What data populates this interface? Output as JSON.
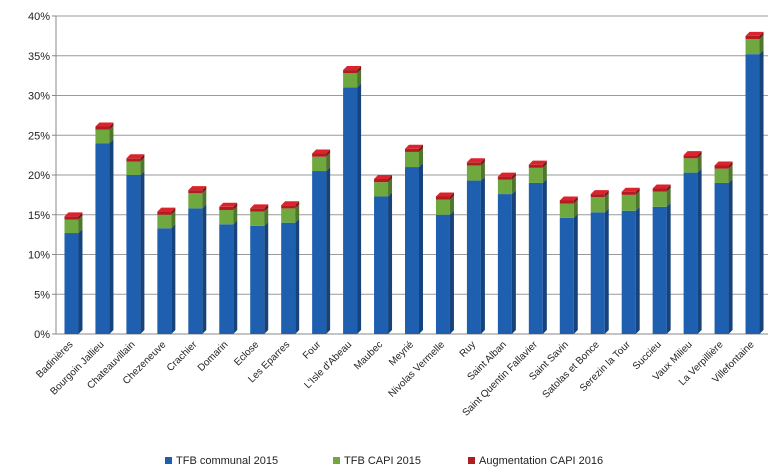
{
  "chart_data": {
    "type": "bar",
    "stacked": true,
    "title": "",
    "xlabel": "",
    "ylabel": "",
    "ylim": [
      0,
      40
    ],
    "yticks": [
      "0%",
      "5%",
      "10%",
      "15%",
      "20%",
      "25%",
      "30%",
      "35%",
      "40%"
    ],
    "grid": true,
    "legend_position": "bottom",
    "categories": [
      "Badinières",
      "Bourgoin Jallieu",
      "Chateauvillain",
      "Chezeneuve",
      "Crachier",
      "Domarin",
      "Eclose",
      "Les Eparres",
      "Four",
      "L'Isle d'Abeau",
      "Maubec",
      "Meyrié",
      "Nivolas Vermelle",
      "Ruy",
      "Saint Alban",
      "Saint Quentin Fallavier",
      "Saint Savin",
      "Satolas et Bonce",
      "Serezin la Tour",
      "Succieu",
      "Vaux Milieu",
      "La Verpillière",
      "Villefontaine"
    ],
    "series": [
      {
        "name": "TFB communal 2015",
        "color": "#1f5fb0",
        "values": [
          12.7,
          24.0,
          20.0,
          13.3,
          15.8,
          13.8,
          13.6,
          14.0,
          20.5,
          31.0,
          17.3,
          21.0,
          15.0,
          19.3,
          17.6,
          19.0,
          14.6,
          15.3,
          15.5,
          16.0,
          20.3,
          19.0,
          35.2
        ]
      },
      {
        "name": "TFB CAPI 2015",
        "color": "#6fa83f",
        "values": [
          1.7,
          1.7,
          1.7,
          1.7,
          1.9,
          1.8,
          1.8,
          1.8,
          1.8,
          1.8,
          1.8,
          1.9,
          1.9,
          1.9,
          1.8,
          1.9,
          1.8,
          1.9,
          2.0,
          1.9,
          1.8,
          1.8,
          1.9
        ]
      },
      {
        "name": "Augmentation CAPI 2016",
        "color": "#b01c22",
        "values": [
          0.4,
          0.4,
          0.4,
          0.4,
          0.4,
          0.4,
          0.4,
          0.4,
          0.4,
          0.4,
          0.4,
          0.4,
          0.4,
          0.4,
          0.4,
          0.4,
          0.4,
          0.4,
          0.4,
          0.4,
          0.4,
          0.4,
          0.4
        ]
      }
    ]
  }
}
